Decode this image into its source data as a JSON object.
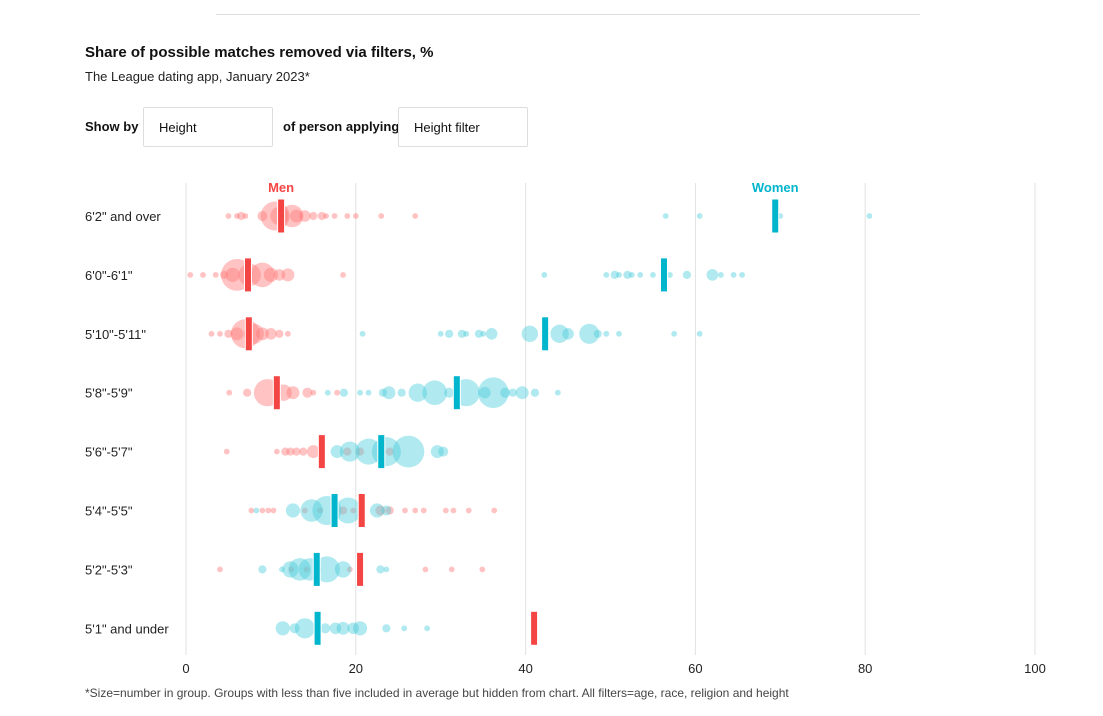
{
  "header": {
    "title": "Share of possible matches removed via filters, %",
    "subtitle": "The League dating app, January 2023*"
  },
  "controls": {
    "show_by_label": "Show by",
    "show_by_value": "Height",
    "of_label": "of person applying",
    "filter_value": "Height filter"
  },
  "footnote": "*Size=number in group. Groups with less than five included in average but hidden from chart. All filters=age, race, religion and height",
  "chart_data": {
    "type": "scatter",
    "subtype": "beeswarm",
    "xlim": [
      0,
      100
    ],
    "x_ticks": [
      0,
      20,
      40,
      60,
      80,
      100
    ],
    "grid": true,
    "colors": {
      "Men": "#f44545",
      "Women": "#00b5cc"
    },
    "categories": [
      "6'2\" and over",
      "6'0\"-6'1\"",
      "5'10\"-5'11\"",
      "5'8\"-5'9\"",
      "5'6\"-5'7\"",
      "5'4\"-5'5\"",
      "5'2\"-5'3\"",
      "5'1\" and under"
    ],
    "series": [
      {
        "name": "Men",
        "averages": [
          11.2,
          7.3,
          7.4,
          10.7,
          16.0,
          20.7,
          20.5,
          41.0
        ],
        "dots": [
          [
            [
              5,
              1
            ],
            [
              6,
              1
            ],
            [
              6.5,
              2
            ],
            [
              7,
              1
            ],
            [
              9,
              3
            ],
            [
              10.5,
              25
            ],
            [
              11,
              10
            ],
            [
              12.5,
              15
            ],
            [
              13,
              5
            ],
            [
              14,
              4
            ],
            [
              15,
              2
            ],
            [
              16,
              2
            ],
            [
              16.5,
              1
            ],
            [
              17.5,
              1
            ],
            [
              19,
              1
            ],
            [
              20,
              1
            ],
            [
              23,
              1
            ],
            [
              27,
              1
            ]
          ],
          [
            [
              0.5,
              1
            ],
            [
              2,
              1
            ],
            [
              3.5,
              1
            ],
            [
              4.5,
              2
            ],
            [
              5.5,
              6
            ],
            [
              6,
              30
            ],
            [
              7.5,
              15
            ],
            [
              9,
              18
            ],
            [
              10,
              6
            ],
            [
              11,
              4
            ],
            [
              12,
              5
            ],
            [
              18.5,
              1
            ]
          ],
          [
            [
              3,
              1
            ],
            [
              4,
              1
            ],
            [
              5,
              2
            ],
            [
              6,
              5
            ],
            [
              7,
              25
            ],
            [
              8,
              12
            ],
            [
              9,
              5
            ],
            [
              10,
              4
            ],
            [
              11,
              2
            ],
            [
              12,
              1
            ]
          ],
          [
            [
              5.1,
              1
            ],
            [
              7.2,
              2
            ],
            [
              9.6,
              22
            ],
            [
              11.5,
              8
            ],
            [
              12.6,
              5
            ],
            [
              14.3,
              3
            ],
            [
              15,
              1
            ],
            [
              17.8,
              1
            ]
          ],
          [
            [
              4.8,
              1
            ],
            [
              10.7,
              1
            ],
            [
              11.7,
              2
            ],
            [
              12.3,
              2
            ],
            [
              13,
              2
            ],
            [
              13.8,
              2
            ],
            [
              15,
              5
            ],
            [
              19,
              2
            ],
            [
              20.5,
              2
            ],
            [
              24,
              2
            ]
          ],
          [
            [
              7.7,
              1
            ],
            [
              9,
              1
            ],
            [
              9.7,
              1
            ],
            [
              10.3,
              1
            ],
            [
              14,
              1
            ],
            [
              15.8,
              1
            ],
            [
              18.5,
              2
            ],
            [
              19.7,
              1
            ],
            [
              22.9,
              3
            ],
            [
              24,
              2
            ],
            [
              25.8,
              1
            ],
            [
              27,
              1
            ],
            [
              28,
              1
            ],
            [
              30.6,
              1
            ],
            [
              31.5,
              1
            ],
            [
              33.3,
              1
            ],
            [
              36.3,
              1
            ]
          ],
          [
            [
              4,
              1
            ],
            [
              12.4,
              1
            ],
            [
              14.2,
              1
            ],
            [
              19.3,
              1
            ],
            [
              28.2,
              1
            ],
            [
              31.3,
              1
            ],
            [
              34.9,
              1
            ]
          ],
          []
        ]
      },
      {
        "name": "Women",
        "averages": [
          69.4,
          56.3,
          42.3,
          31.9,
          23.0,
          17.5,
          15.4,
          15.5
        ],
        "dots": [
          [
            [
              56.5,
              1
            ],
            [
              60.5,
              1
            ],
            [
              70,
              1
            ],
            [
              80.5,
              1
            ]
          ],
          [
            [
              42.2,
              1
            ],
            [
              49.5,
              1
            ],
            [
              50.5,
              2
            ],
            [
              51,
              1
            ],
            [
              52,
              2
            ],
            [
              52.5,
              1
            ],
            [
              53.5,
              1
            ],
            [
              55,
              1
            ],
            [
              57,
              1
            ],
            [
              59,
              2
            ],
            [
              62,
              4
            ],
            [
              63,
              1
            ],
            [
              64.5,
              1
            ],
            [
              65.5,
              1
            ]
          ],
          [
            [
              20.8,
              1
            ],
            [
              30,
              1
            ],
            [
              31,
              2
            ],
            [
              32.5,
              2
            ],
            [
              33,
              1
            ],
            [
              34.5,
              2
            ],
            [
              35,
              1
            ],
            [
              36,
              4
            ],
            [
              40.5,
              8
            ],
            [
              44,
              10
            ],
            [
              45,
              4
            ],
            [
              47.5,
              12
            ],
            [
              48.5,
              2
            ],
            [
              49.5,
              1
            ],
            [
              51,
              1
            ],
            [
              57.5,
              1
            ],
            [
              60.5,
              1
            ]
          ],
          [
            [
              16.7,
              1
            ],
            [
              18.6,
              2
            ],
            [
              20.5,
              1
            ],
            [
              21.5,
              1
            ],
            [
              23.2,
              2
            ],
            [
              23.9,
              5
            ],
            [
              25.4,
              2
            ],
            [
              27.3,
              10
            ],
            [
              29.3,
              18
            ],
            [
              31,
              3
            ],
            [
              33,
              22
            ],
            [
              35.2,
              4
            ],
            [
              36.2,
              28
            ],
            [
              37.6,
              3
            ],
            [
              38.5,
              2
            ],
            [
              39.6,
              5
            ],
            [
              41.1,
              2
            ],
            [
              43.8,
              1
            ]
          ],
          [
            [
              17.8,
              5
            ],
            [
              19.3,
              12
            ],
            [
              21.5,
              20
            ],
            [
              23.6,
              25
            ],
            [
              26.2,
              30
            ],
            [
              29.6,
              5
            ],
            [
              30.3,
              3
            ]
          ],
          [
            [
              8.3,
              1
            ],
            [
              12.6,
              6
            ],
            [
              14.8,
              15
            ],
            [
              16.6,
              25
            ],
            [
              19.1,
              20
            ],
            [
              22.5,
              6
            ],
            [
              23.6,
              3
            ]
          ],
          [
            [
              9,
              2
            ],
            [
              11.3,
              1
            ],
            [
              12.3,
              8
            ],
            [
              13.4,
              15
            ],
            [
              14.6,
              15
            ],
            [
              16.6,
              20
            ],
            [
              18.5,
              8
            ],
            [
              22.9,
              2
            ],
            [
              23.6,
              1
            ]
          ],
          [
            [
              11.4,
              6
            ],
            [
              12.8,
              3
            ],
            [
              14,
              12
            ],
            [
              16.4,
              3
            ],
            [
              17.6,
              4
            ],
            [
              18.5,
              5
            ],
            [
              19.7,
              4
            ],
            [
              20.5,
              6
            ],
            [
              23.6,
              2
            ],
            [
              25.7,
              1
            ],
            [
              28.4,
              1
            ]
          ]
        ]
      }
    ]
  }
}
